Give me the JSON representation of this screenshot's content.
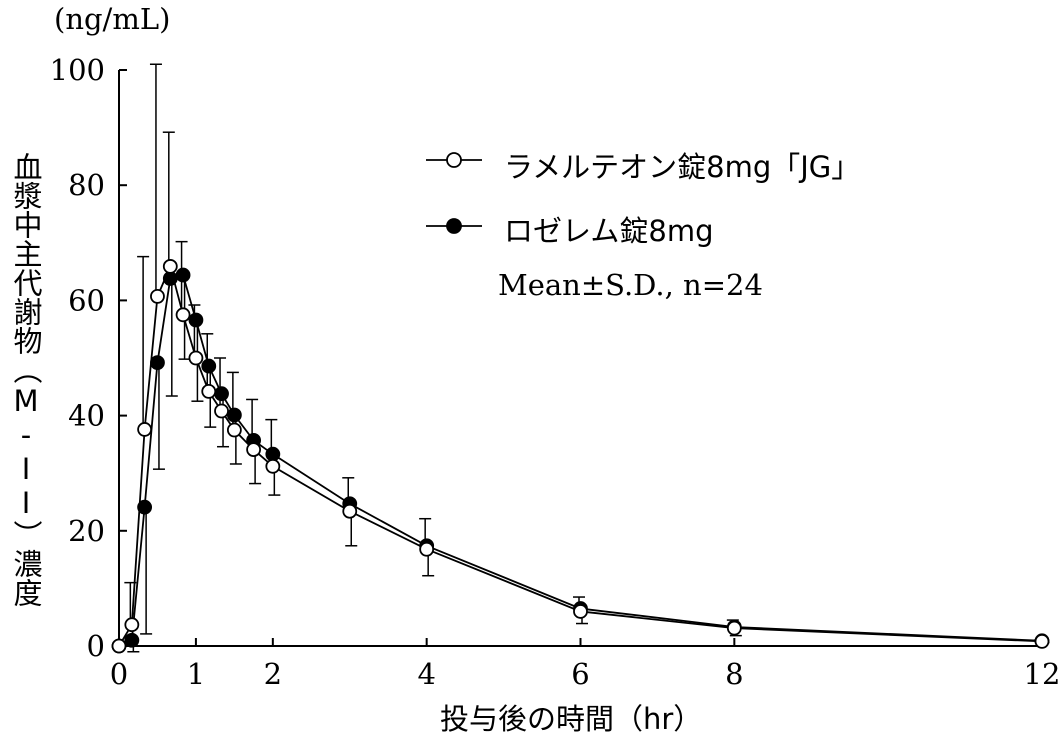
{
  "chart_data": {
    "type": "line",
    "title": "",
    "xlabel": "投与後の時間（hr）",
    "ylabel": "血漿中主代謝物（M-II）濃度",
    "yunit": "(ng/mL)",
    "xlim": [
      0,
      12
    ],
    "ylim": [
      0,
      100
    ],
    "xticks": [
      0,
      1,
      2,
      4,
      6,
      8,
      12
    ],
    "yticks": [
      0,
      20,
      40,
      60,
      80,
      100
    ],
    "note": "Mean±S.D., n=24",
    "legend_position": "top-right",
    "series": [
      {
        "name": "ラメルテオン錠8mg「JG」",
        "marker": "open-circle",
        "x": [
          0,
          0.167,
          0.333,
          0.5,
          0.667,
          0.833,
          1,
          1.167,
          1.333,
          1.5,
          1.75,
          2,
          3,
          4,
          6,
          8,
          12
        ],
        "y": [
          0,
          3.7,
          37.6,
          60.7,
          65.9,
          57.5,
          50.0,
          44.2,
          40.8,
          37.5,
          34.1,
          31.2,
          23.4,
          16.8,
          6.0,
          3.1,
          0.8
        ],
        "sd": [
          0,
          7.3,
          30.0,
          40.3,
          23.3,
          12.7,
          9.2,
          10.0,
          9.2,
          10.0,
          8.7,
          8.1,
          5.8,
          5.3,
          2.5,
          1.4,
          0.3
        ]
      },
      {
        "name": "ロゼレム錠8mg",
        "marker": "filled-circle",
        "x": [
          0,
          0.167,
          0.333,
          0.5,
          0.667,
          0.833,
          1,
          1.167,
          1.333,
          1.5,
          1.75,
          2,
          3,
          4,
          6,
          8,
          12
        ],
        "y": [
          0,
          1.0,
          24.1,
          49.2,
          63.8,
          64.4,
          56.6,
          48.6,
          43.8,
          40.1,
          35.7,
          33.3,
          24.7,
          17.4,
          6.5,
          3.3,
          0.9
        ],
        "sd": [
          0,
          2.0,
          22.0,
          18.5,
          20.4,
          14.6,
          14.1,
          10.6,
          9.2,
          8.5,
          7.5,
          7.1,
          7.3,
          5.2,
          2.6,
          1.5,
          0.3
        ]
      }
    ]
  }
}
